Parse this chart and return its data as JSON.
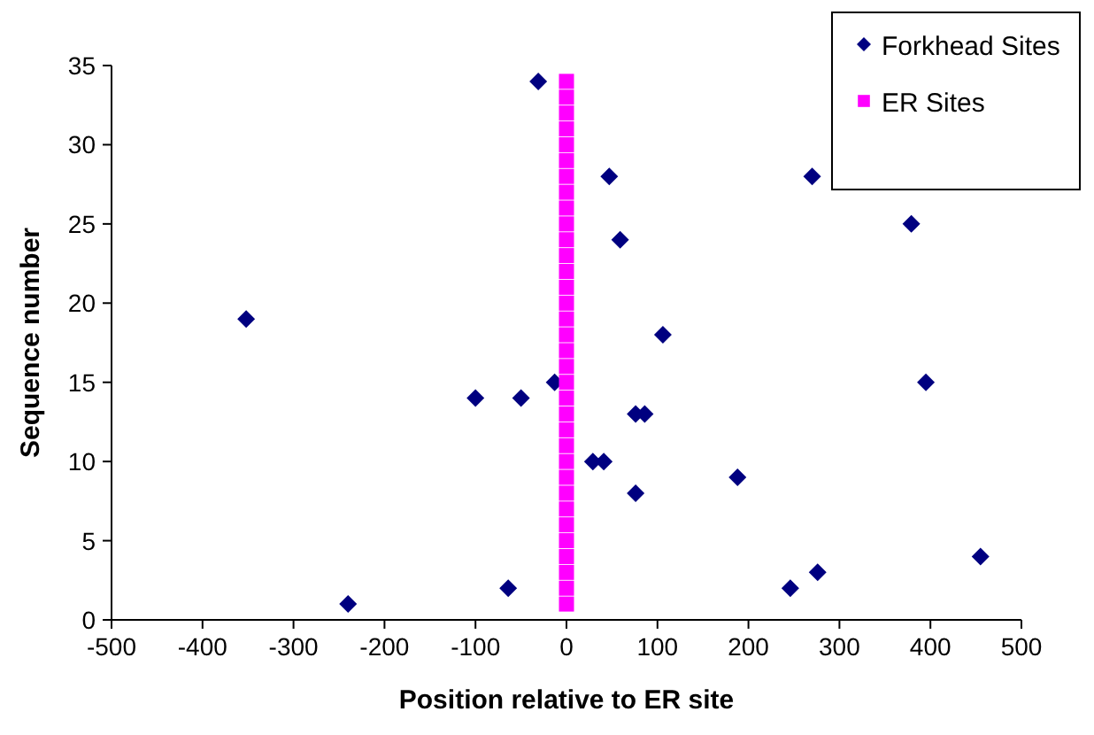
{
  "chart_data": {
    "type": "scatter",
    "xlabel": "Position relative to ER site",
    "ylabel": "Sequence number",
    "xlim": [
      -500,
      500
    ],
    "xticks": [
      -500,
      -400,
      -300,
      -200,
      -100,
      0,
      100,
      200,
      300,
      400,
      500
    ],
    "ylim": [
      0,
      35
    ],
    "yticks": [
      0,
      5,
      10,
      15,
      20,
      25,
      30,
      35
    ],
    "grid": false,
    "legend": "top right",
    "series": [
      {
        "name": "Forkhead Sites",
        "color": "#000080",
        "marker": "diamond",
        "x": [
          -31,
          -352,
          -100,
          -50,
          -13,
          29,
          41,
          -240,
          -64,
          47,
          270,
          379,
          59,
          106,
          395,
          76,
          86,
          76,
          188,
          455,
          276,
          246
        ],
        "values": [
          34,
          19,
          14,
          14,
          15,
          10,
          10,
          1,
          2,
          28,
          28,
          25,
          24,
          18,
          15,
          13,
          13,
          8,
          9,
          4,
          3,
          2
        ]
      },
      {
        "name": "ER Sites",
        "color": "#ff00ff",
        "marker": "square",
        "x": [
          0,
          0,
          0,
          0,
          0,
          0,
          0,
          0,
          0,
          0,
          0,
          0,
          0,
          0,
          0,
          0,
          0,
          0,
          0,
          0,
          0,
          0,
          0,
          0,
          0,
          0,
          0,
          0,
          0,
          0,
          0,
          0,
          0,
          0
        ],
        "values": [
          1,
          2,
          3,
          4,
          5,
          6,
          7,
          8,
          9,
          10,
          11,
          12,
          13,
          14,
          15,
          16,
          17,
          18,
          19,
          20,
          21,
          22,
          23,
          24,
          25,
          26,
          27,
          28,
          29,
          30,
          31,
          32,
          33,
          34
        ]
      }
    ]
  }
}
